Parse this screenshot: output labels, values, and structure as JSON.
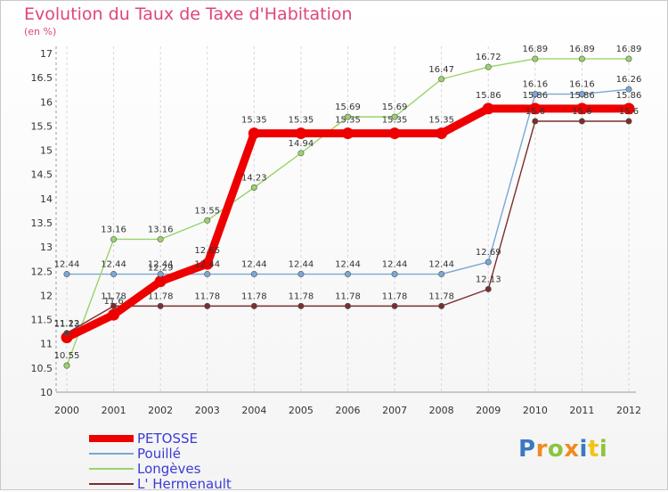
{
  "title": "Evolution du Taux de Taxe d'Habitation",
  "unit": "(en %)",
  "logo": {
    "text": "Proxiti",
    "colors": [
      "#3a78c2",
      "#f08a24",
      "#8bc53f",
      "#f08a24",
      "#3a78c2",
      "#f0c419",
      "#8bc53f"
    ]
  },
  "chart_data": {
    "type": "line",
    "x": [
      "2000",
      "2001",
      "2002",
      "2003",
      "2004",
      "2005",
      "2006",
      "2007",
      "2008",
      "2009",
      "2010",
      "2011",
      "2012"
    ],
    "ylim": [
      10,
      17
    ],
    "yticks": [
      "10",
      "10.5",
      "11",
      "11.5",
      "12",
      "12.5",
      "13",
      "13.5",
      "14",
      "14.5",
      "15",
      "15.5",
      "16",
      "16.5",
      "17"
    ],
    "grid": "vertical dashed",
    "legend": "bottom-left",
    "series": [
      {
        "name": "PETOSSE",
        "color": "#ee0000",
        "width": 9,
        "marker": 6.5,
        "values": [
          11.13,
          11.6,
          12.29,
          12.65,
          15.35,
          15.35,
          15.35,
          15.35,
          15.35,
          15.86,
          15.86,
          15.86,
          15.86
        ],
        "labels": [
          "11.13",
          "11.6",
          "12.29",
          "12.65",
          "15.35",
          "15.35",
          "15.35",
          "15.35",
          "15.35",
          "15.86",
          "15.86",
          "15.86",
          "15.86"
        ]
      },
      {
        "name": "Pouillé",
        "color": "#7aa7d6",
        "width": 1.4,
        "marker": 3.2,
        "values": [
          12.44,
          12.44,
          12.44,
          12.44,
          12.44,
          12.44,
          12.44,
          12.44,
          12.44,
          12.69,
          16.16,
          16.16,
          16.26
        ],
        "labels": [
          "12.44",
          "12.44",
          "12.44",
          "12.44",
          "12.44",
          "12.44",
          "12.44",
          "12.44",
          "12.44",
          "12.69",
          "16.16",
          "16.16",
          "16.26"
        ]
      },
      {
        "name": "Longèves",
        "color": "#9ad46a",
        "width": 1.4,
        "marker": 3.2,
        "values": [
          10.55,
          13.16,
          13.16,
          13.55,
          14.23,
          14.94,
          15.69,
          15.69,
          16.47,
          16.72,
          16.89,
          16.89,
          16.89
        ],
        "labels": [
          "10.55",
          "13.16",
          "13.16",
          "13.55",
          "14.23",
          "14.94",
          "15.69",
          "15.69",
          "16.47",
          "16.72",
          "16.89",
          "16.89",
          "16.89"
        ]
      },
      {
        "name": "L' Hermenault",
        "color": "#7a2f2f",
        "width": 1.4,
        "marker": 3.2,
        "values": [
          11.22,
          11.78,
          11.78,
          11.78,
          11.78,
          11.78,
          11.78,
          11.78,
          11.78,
          12.13,
          15.6,
          15.6,
          15.6
        ],
        "labels": [
          "11.22",
          "11.78",
          "11.78",
          "11.78",
          "11.78",
          "11.78",
          "11.78",
          "11.78",
          "11.78",
          "12.13",
          "15.6",
          "15.6",
          "15.6"
        ]
      }
    ]
  }
}
